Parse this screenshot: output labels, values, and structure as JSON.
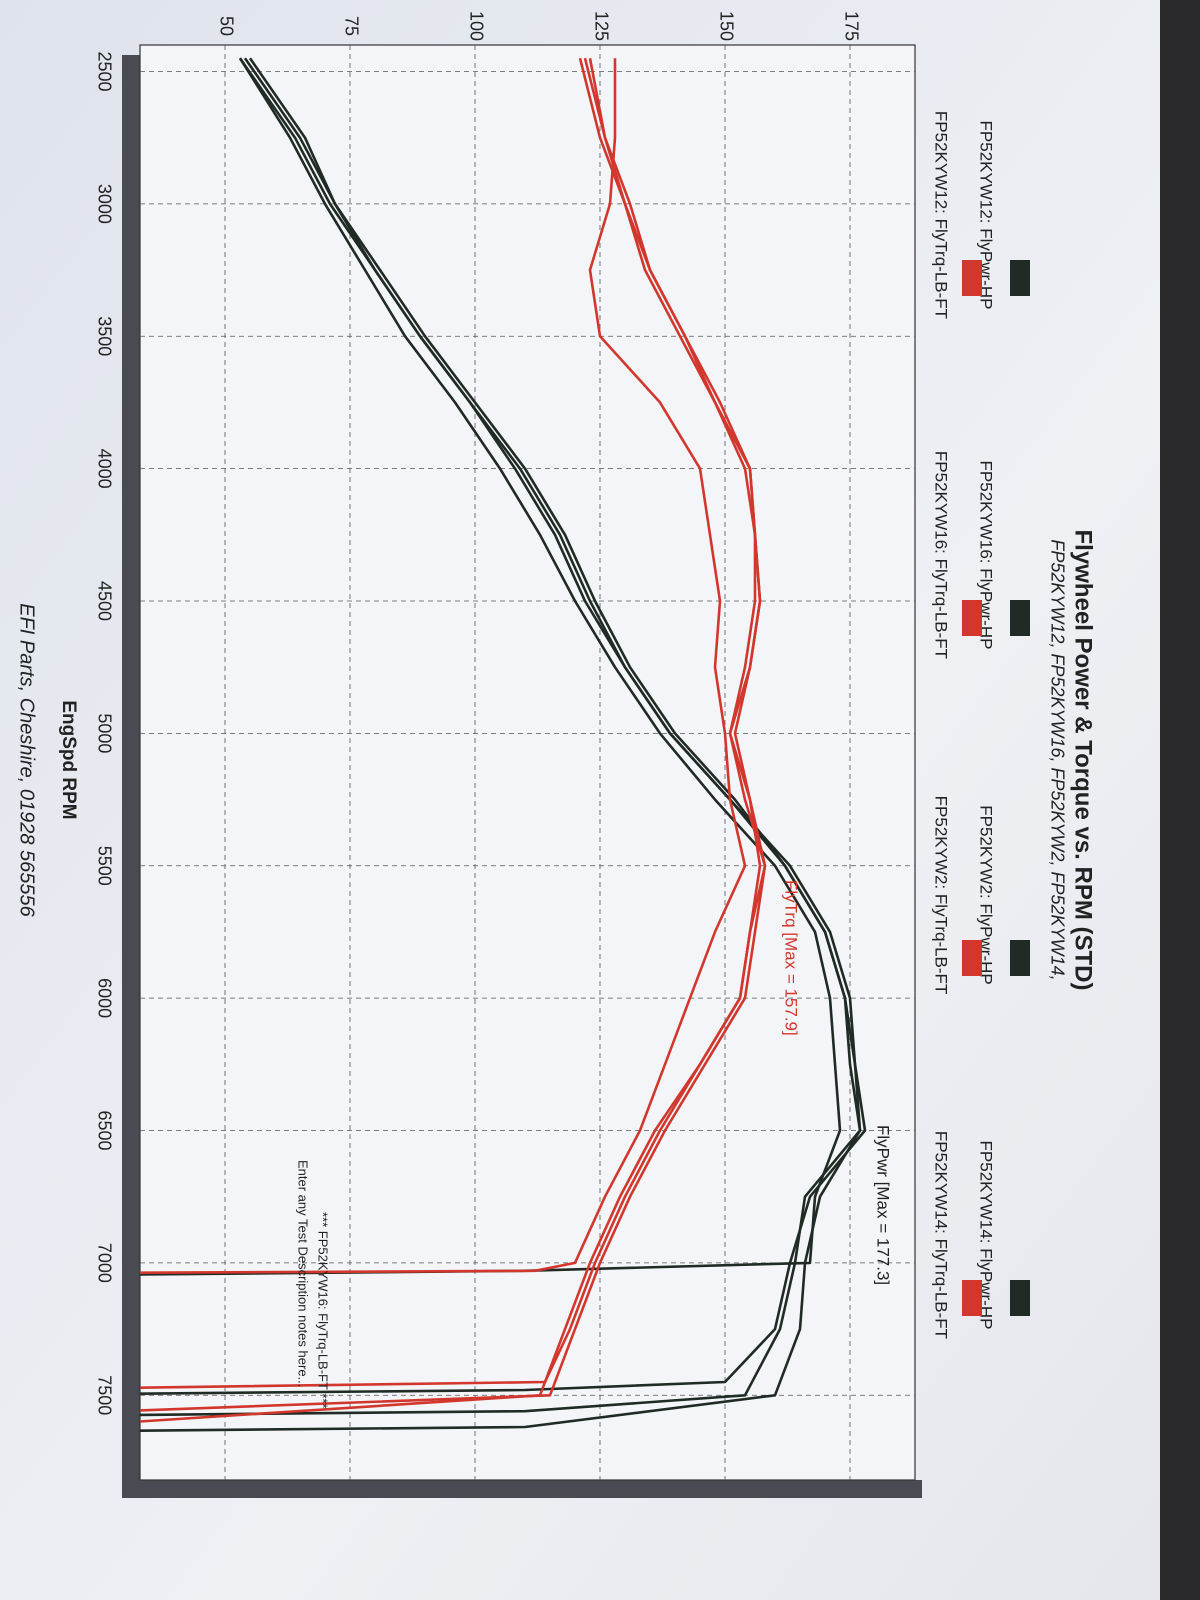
{
  "chart_data": {
    "type": "line",
    "title": "Flywheel Power & Torque vs. RPM (STD)",
    "subtitle": "FP52KYW12, FP52KYW16, FP52KYW2, FP52KYW14,",
    "x_label": "EngSpd RPM",
    "footer": "EFI Parts, Cheshire, 01928 565556",
    "annotations": [
      "FlyPwr [Max = 177.3]",
      "FlyTrq [Max = 157.9]",
      "*** FP52KYW16: FlyTrq-LB-FT ***",
      "Enter any Test Description notes here..."
    ],
    "xlim": [
      2400,
      7820
    ],
    "xticks": [
      2500,
      3000,
      3500,
      4000,
      4500,
      5000,
      5500,
      6000,
      6500,
      7000,
      7500
    ],
    "ylim": [
      33,
      188
    ],
    "yticks": [
      50,
      75,
      100,
      125,
      150,
      175
    ],
    "grid": true,
    "series": [
      {
        "name": "FP52KYW12: FlyPwr-HP",
        "color": "#1f2b24",
        "x": [
          2450,
          2750,
          3000,
          3250,
          3500,
          3750,
          4000,
          4250,
          4500,
          4750,
          5000,
          5250,
          5500,
          5750,
          6000,
          6250,
          6500,
          6750,
          7000,
          7030,
          7050
        ],
        "values": [
          53,
          63,
          70,
          78,
          86,
          96,
          105,
          113,
          120,
          128,
          137,
          148,
          160,
          168,
          171,
          172,
          173,
          168,
          167,
          110,
          0
        ]
      },
      {
        "name": "FP52KYW16: FlyPwr-HP",
        "color": "#1f2b24",
        "x": [
          2450,
          2750,
          3000,
          3250,
          3500,
          3750,
          4000,
          4250,
          4500,
          4750,
          5000,
          5250,
          5500,
          5750,
          6000,
          6250,
          6500,
          6750,
          7000,
          7250,
          7450,
          7480,
          7500
        ],
        "values": [
          54,
          65,
          72,
          81,
          90,
          100,
          110,
          118,
          124,
          131,
          140,
          152,
          162,
          170,
          174,
          176,
          178,
          167,
          163,
          160,
          150,
          110,
          0
        ]
      },
      {
        "name": "FP52KYW2: FlyPwr-HP",
        "color": "#1f2b24",
        "x": [
          2450,
          2750,
          3000,
          3250,
          3500,
          3750,
          4000,
          4250,
          4500,
          4750,
          5000,
          5250,
          5500,
          5750,
          6000,
          6250,
          6500,
          6750,
          7000,
          7250,
          7500,
          7560,
          7580
        ],
        "values": [
          53,
          64,
          71,
          80,
          89,
          99,
          109,
          117,
          123,
          130,
          139,
          151,
          163,
          171,
          175,
          176,
          177,
          166,
          164,
          161,
          154,
          110,
          0
        ]
      },
      {
        "name": "FP52KYW14: FlyPwr-HP",
        "color": "#1f2b24",
        "x": [
          2450,
          2750,
          3000,
          3250,
          3500,
          3750,
          4000,
          4250,
          4500,
          4750,
          5000,
          5250,
          5500,
          5750,
          6000,
          6250,
          6500,
          6750,
          7000,
          7250,
          7500,
          7620,
          7640
        ],
        "values": [
          55,
          66,
          72,
          80,
          89,
          99,
          108,
          116,
          122,
          130,
          139,
          151,
          162,
          170,
          174,
          175,
          177,
          169,
          166,
          165,
          160,
          110,
          0
        ]
      },
      {
        "name": "FP52KYW12: FlyTrq-LB-FT",
        "color": "#d2372d",
        "x": [
          2450,
          2750,
          3000,
          3250,
          3500,
          3750,
          4000,
          4250,
          4500,
          4750,
          5000,
          5250,
          5500,
          5750,
          6000,
          6250,
          6500,
          6750,
          7000,
          7030,
          7040
        ],
        "values": [
          128,
          128,
          127,
          123,
          125,
          137,
          145,
          147,
          149,
          148,
          150,
          151,
          154,
          148,
          143,
          138,
          133,
          126,
          120,
          112,
          0
        ]
      },
      {
        "name": "FP52KYW16: FlyTrq-LB-FT",
        "color": "#d2372d",
        "x": [
          2450,
          2750,
          3000,
          3250,
          3500,
          3750,
          4000,
          4250,
          4500,
          4750,
          5000,
          5250,
          5500,
          5750,
          6000,
          6250,
          6500,
          6750,
          7000,
          7250,
          7450,
          7480
        ],
        "values": [
          122,
          126,
          131,
          135,
          142,
          149,
          155,
          156,
          157,
          155,
          151,
          154,
          158,
          155,
          153,
          145,
          137,
          130,
          124,
          119,
          114,
          0
        ]
      },
      {
        "name": "FP52KYW2: FlyTrq-LB-FT",
        "color": "#d2372d",
        "x": [
          2450,
          2750,
          3000,
          3250,
          3500,
          3750,
          4000,
          4250,
          4500,
          4750,
          5000,
          5250,
          5500,
          5750,
          6000,
          6250,
          6500,
          6750,
          7000,
          7250,
          7500,
          7580
        ],
        "values": [
          121,
          125,
          130,
          134,
          141,
          148,
          154,
          156,
          156,
          154,
          151,
          155,
          158,
          156,
          154,
          146,
          138,
          131,
          125,
          120,
          115,
          0
        ]
      },
      {
        "name": "FP52KYW14: FlyTrq-LB-FT",
        "color": "#d2372d",
        "x": [
          2450,
          2750,
          3000,
          3250,
          3500,
          3750,
          4000,
          4250,
          4500,
          4750,
          5000,
          5250,
          5500,
          5750,
          6000,
          6250,
          6500,
          6750,
          7000,
          7250,
          7500,
          7640
        ],
        "values": [
          123,
          126,
          130,
          135,
          142,
          148,
          155,
          156,
          157,
          155,
          152,
          155,
          157,
          155,
          153,
          145,
          136,
          129,
          123,
          118,
          113,
          0
        ]
      }
    ]
  }
}
